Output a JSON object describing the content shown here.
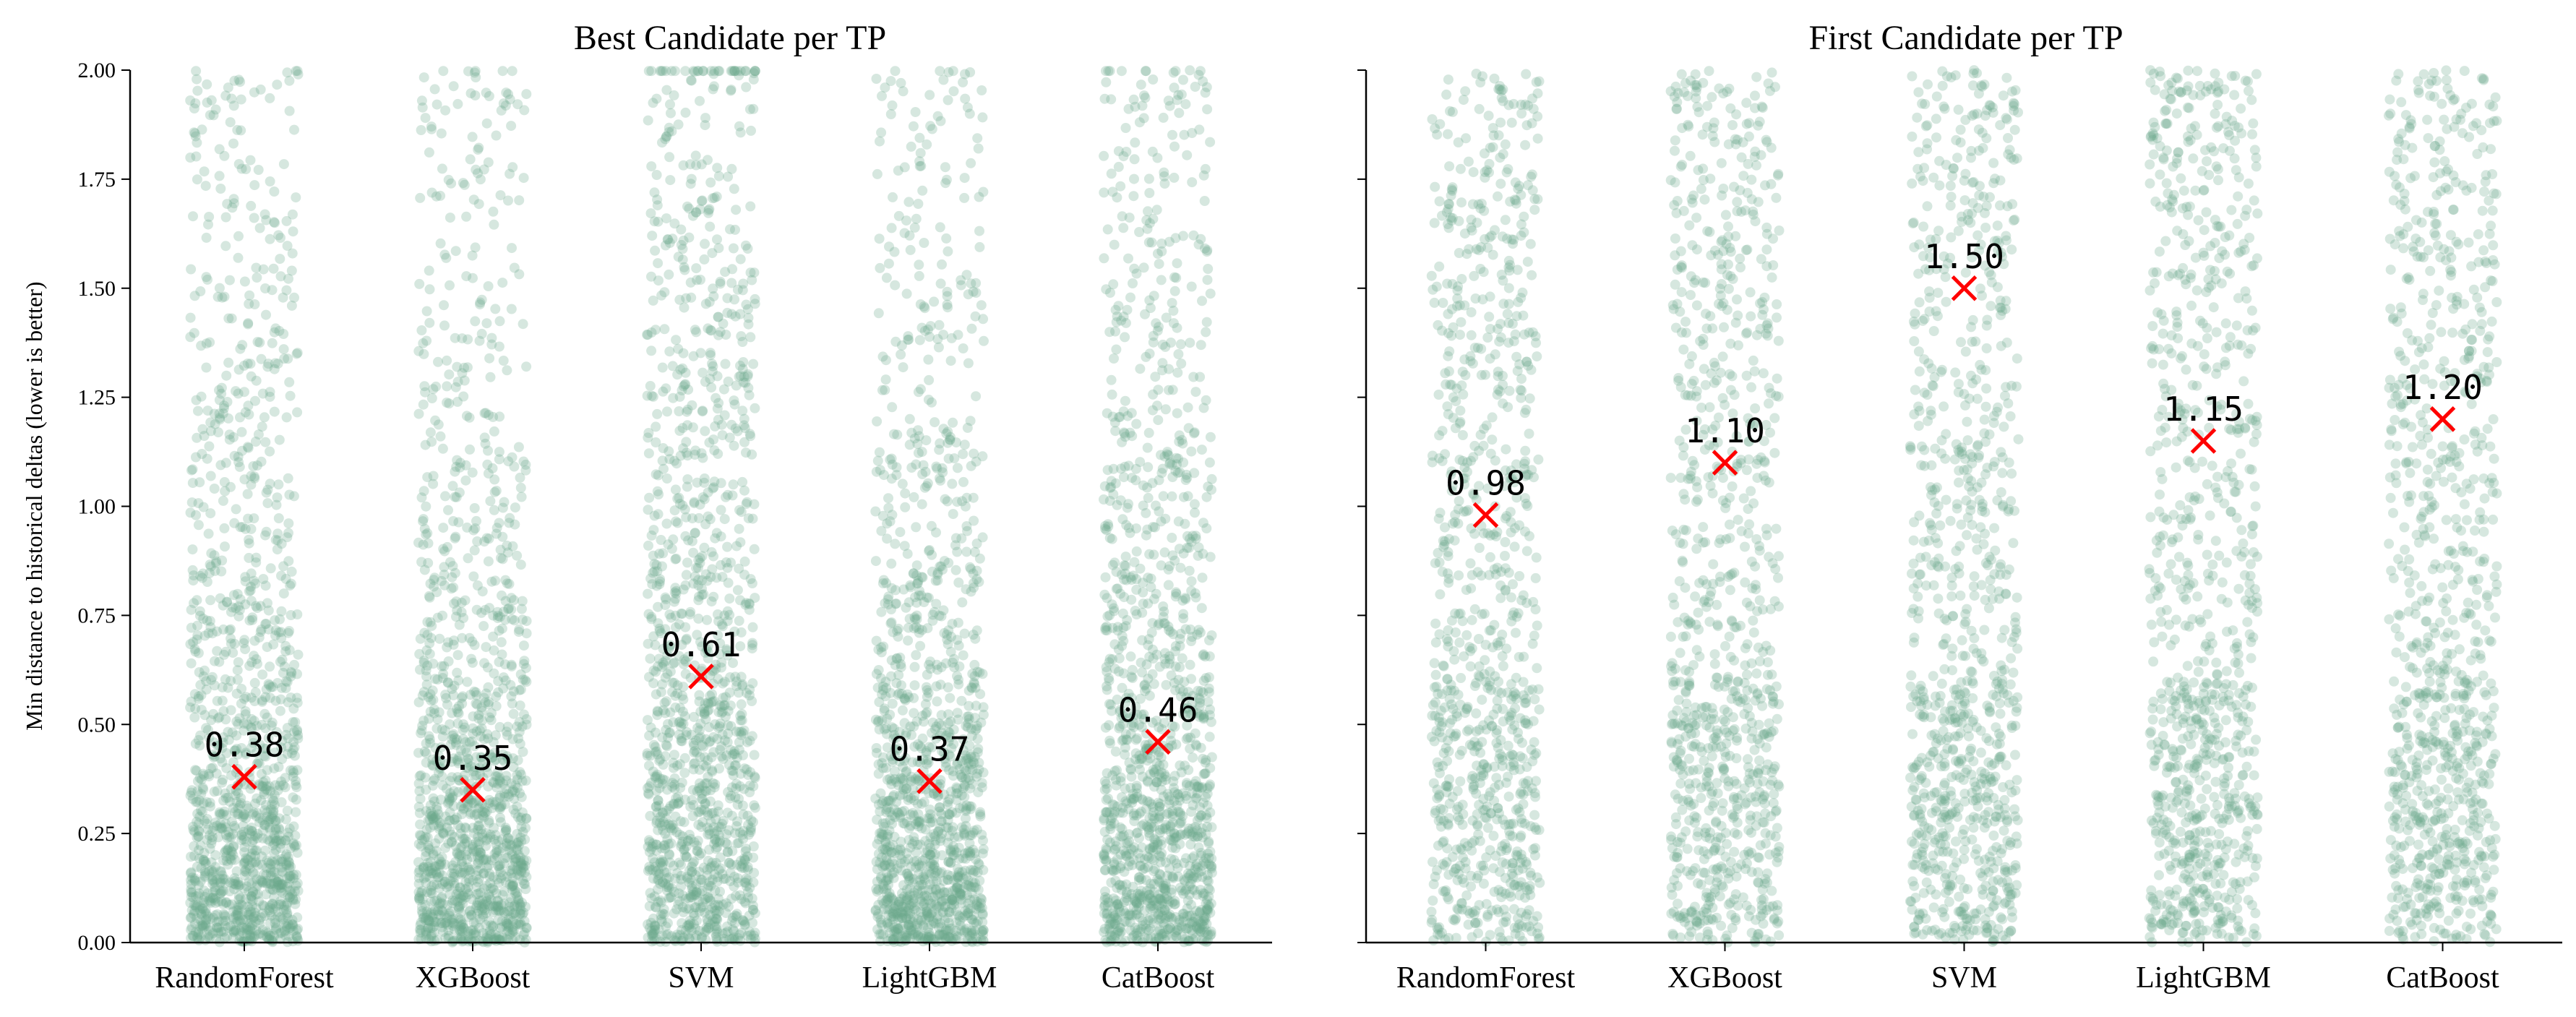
{
  "chart_data": [
    {
      "type": "scatter",
      "subtype": "strip",
      "title": "Best Candidate per TP",
      "ylabel": "Min distance to historical deltas (lower is better)",
      "xlabel": "",
      "categories": [
        "RandomForest",
        "XGBoost",
        "SVM",
        "LightGBM",
        "CatBoost"
      ],
      "ylim": [
        0,
        2
      ],
      "yticks": [
        "0.00",
        "0.25",
        "0.50",
        "0.75",
        "1.00",
        "1.25",
        "1.50",
        "1.75",
        "2.00"
      ],
      "grid": false,
      "point_color": "#6aaa8c",
      "marker_color": "#ff0000",
      "distribution": "skewed toward 0",
      "series": [
        {
          "values": [
            0.38,
            0.35,
            0.61,
            0.37,
            0.46
          ]
        }
      ],
      "mean_labels": [
        "0.38",
        "0.35",
        "0.61",
        "0.37",
        "0.46"
      ]
    },
    {
      "type": "scatter",
      "subtype": "strip",
      "title": "First Candidate per TP",
      "ylabel": "",
      "xlabel": "",
      "categories": [
        "RandomForest",
        "XGBoost",
        "SVM",
        "LightGBM",
        "CatBoost"
      ],
      "ylim": [
        0,
        2
      ],
      "yticks": [
        "0.00",
        "0.25",
        "0.50",
        "0.75",
        "1.00",
        "1.25",
        "1.50",
        "1.75",
        "2.00"
      ],
      "grid": false,
      "point_color": "#6aaa8c",
      "marker_color": "#ff0000",
      "distribution": "spread across range",
      "series": [
        {
          "values": [
            0.98,
            1.1,
            1.5,
            1.15,
            1.2
          ]
        }
      ],
      "mean_labels": [
        "0.98",
        "1.10",
        "1.50",
        "1.15",
        "1.20"
      ]
    }
  ]
}
